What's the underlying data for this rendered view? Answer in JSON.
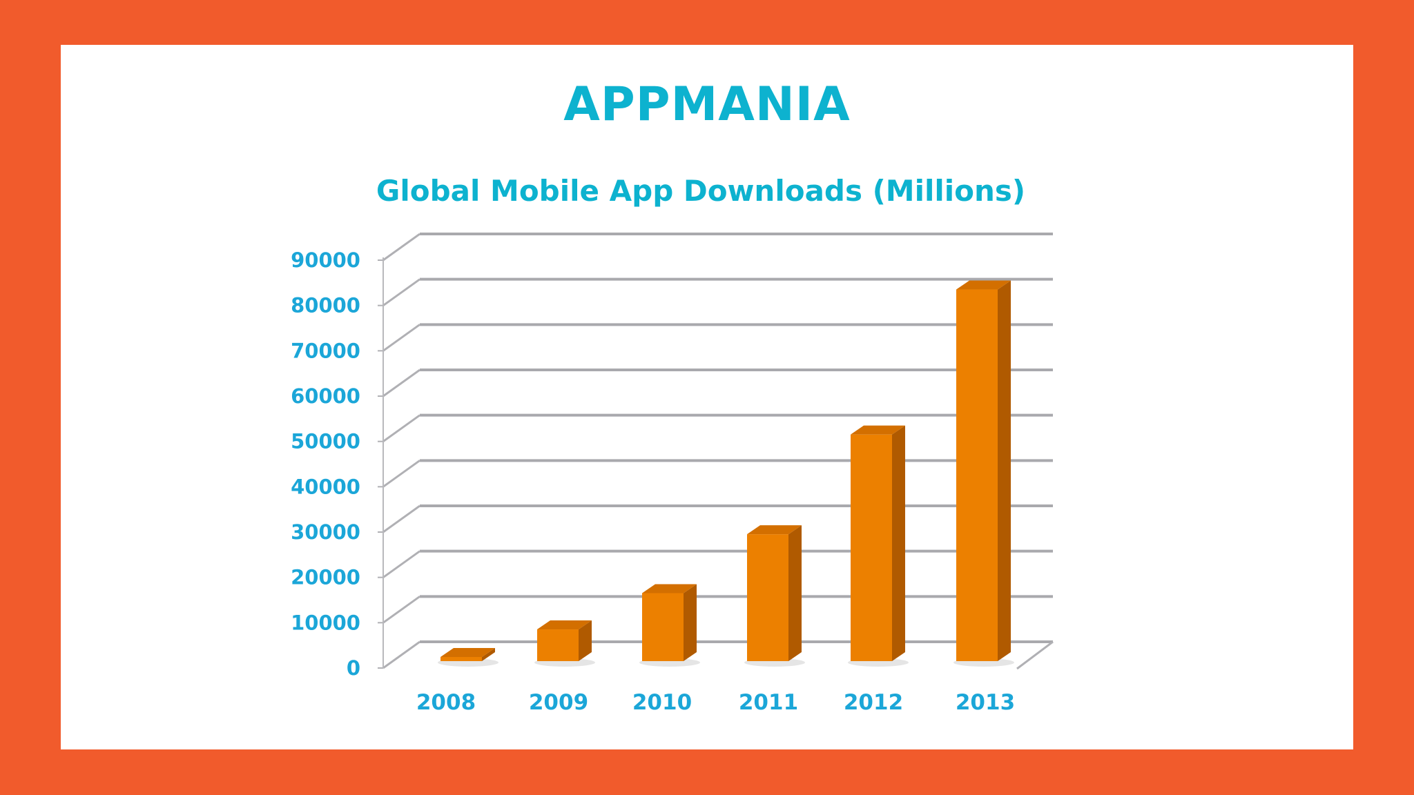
{
  "title": "APPMANIA",
  "colors": {
    "frame": "#f15b2c",
    "panel": "#ffffff",
    "title": "#0db2cf",
    "tick_text": "#1ba6d8",
    "bar_front": "#ec8000",
    "bar_side": "#b05a00",
    "bar_top": "#d36f00",
    "gridline": "#a9a9ad"
  },
  "chart_data": {
    "type": "bar",
    "title": "Global Mobile App Downloads (Millions)",
    "xlabel": "",
    "ylabel": "",
    "categories": [
      "2008",
      "2009",
      "2010",
      "2011",
      "2012",
      "2013"
    ],
    "values": [
      0,
      7000,
      15000,
      28000,
      50000,
      82000
    ],
    "ylim": [
      0,
      90000
    ],
    "yticks": [
      0,
      10000,
      20000,
      30000,
      40000,
      50000,
      60000,
      70000,
      80000,
      90000
    ],
    "grid": true,
    "legend": "none",
    "style": "3d"
  }
}
